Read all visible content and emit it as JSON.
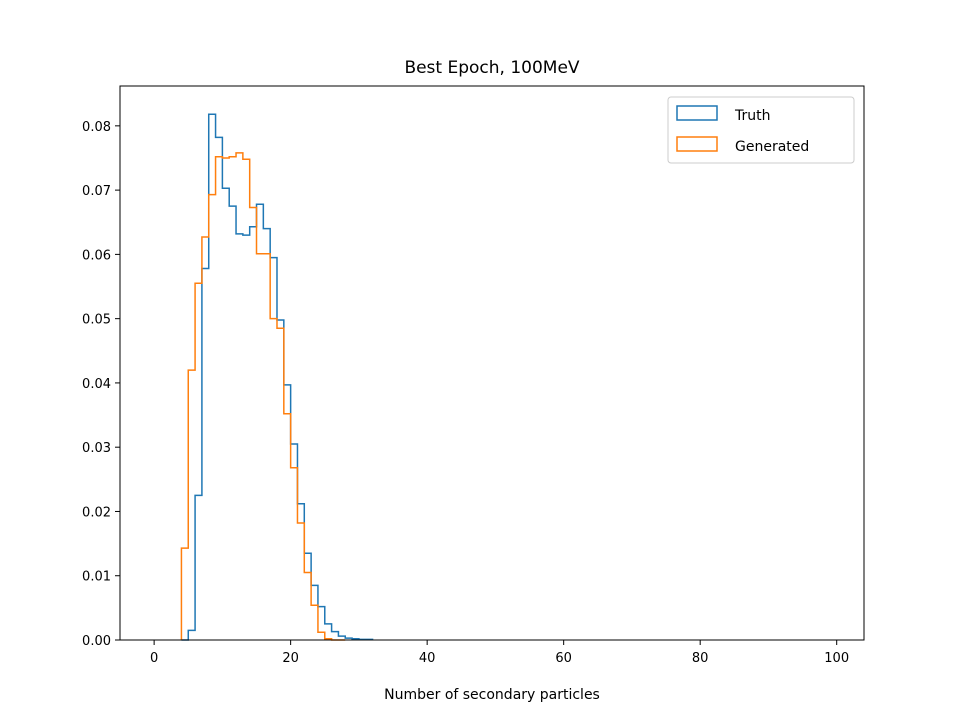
{
  "chart_data": {
    "type": "histogram-step",
    "title": "Best Epoch, 100MeV",
    "xlabel": "Number of secondary particles",
    "ylabel": "",
    "xlim": [
      -5,
      104
    ],
    "ylim": [
      0,
      0.0862
    ],
    "xticks": [
      0,
      20,
      40,
      60,
      80,
      100
    ],
    "yticks": [
      0.0,
      0.01,
      0.02,
      0.03,
      0.04,
      0.05,
      0.06,
      0.07,
      0.08
    ],
    "ytick_labels": [
      "0.00",
      "0.01",
      "0.02",
      "0.03",
      "0.04",
      "0.05",
      "0.06",
      "0.07",
      "0.08"
    ],
    "bin_start": 4,
    "bin_width": 1,
    "legend_position": "upper-right",
    "series": [
      {
        "name": "Truth",
        "color": "#1f77b4",
        "values": [
          0.0,
          0.0015,
          0.0225,
          0.0578,
          0.0818,
          0.0782,
          0.0703,
          0.0675,
          0.0632,
          0.063,
          0.0643,
          0.0678,
          0.064,
          0.0595,
          0.0498,
          0.0397,
          0.0305,
          0.0212,
          0.0135,
          0.0085,
          0.0052,
          0.0025,
          0.0013,
          0.0006,
          0.0003,
          0.0002,
          0.0001,
          0.0001
        ]
      },
      {
        "name": "Generated",
        "color": "#ff7f0e",
        "values": [
          0.0143,
          0.042,
          0.0555,
          0.0627,
          0.0693,
          0.0752,
          0.075,
          0.0752,
          0.0758,
          0.0748,
          0.0673,
          0.0601,
          0.0601,
          0.05,
          0.0485,
          0.0352,
          0.0268,
          0.0182,
          0.0105,
          0.0054,
          0.0012,
          0.0002,
          0.0,
          0.0
        ]
      }
    ]
  }
}
